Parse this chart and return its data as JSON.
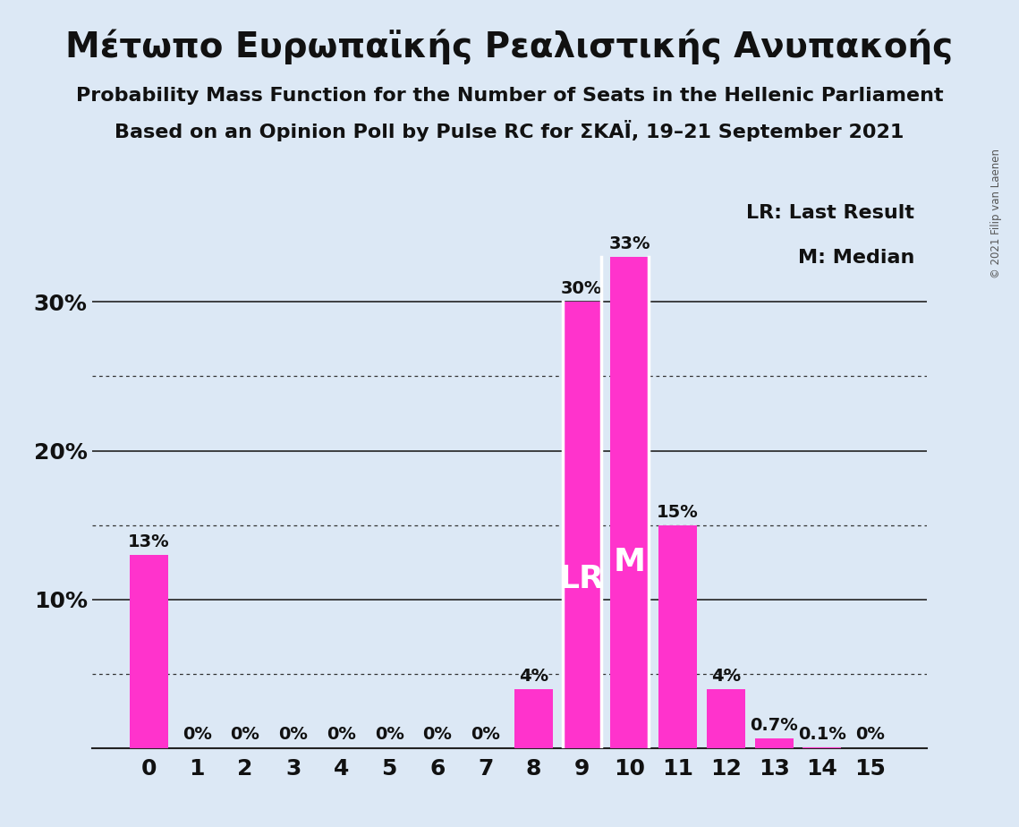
{
  "title_greek": "Μέτωπο Ευρωπαϊκής Ρεαλιστικής Ανυπακοής",
  "subtitle1": "Probability Mass Function for the Number of Seats in the Hellenic Parliament",
  "subtitle2": "Based on an Opinion Poll by Pulse RC for ΣΚΑΪ, 19–21 September 2021",
  "copyright": "© 2021 Filip van Laenen",
  "categories": [
    0,
    1,
    2,
    3,
    4,
    5,
    6,
    7,
    8,
    9,
    10,
    11,
    12,
    13,
    14,
    15
  ],
  "values": [
    0.13,
    0.0,
    0.0,
    0.0,
    0.0,
    0.0,
    0.0,
    0.0,
    0.04,
    0.3,
    0.33,
    0.15,
    0.04,
    0.007,
    0.001,
    0.0
  ],
  "bar_color": "#ff33cc",
  "background_color": "#dce8f5",
  "bar_labels": [
    "13%",
    "0%",
    "0%",
    "0%",
    "0%",
    "0%",
    "0%",
    "0%",
    "4%",
    "30%",
    "33%",
    "15%",
    "4%",
    "0.7%",
    "0.1%",
    "0%"
  ],
  "lr_seat": 9,
  "median_seat": 10,
  "lr_label": "LR",
  "median_label": "M",
  "legend_lr": "LR: Last Result",
  "legend_m": "M: Median",
  "ylim": [
    0,
    0.375
  ],
  "yticks": [
    0.0,
    0.1,
    0.2,
    0.3
  ],
  "ytick_labels": [
    "",
    "10%",
    "20%",
    "30%"
  ],
  "solid_gridlines": [
    0.1,
    0.2,
    0.3
  ],
  "dotted_gridlines": [
    0.05,
    0.15,
    0.25
  ],
  "title_fontsize": 28,
  "subtitle_fontsize": 16,
  "label_fontsize": 14,
  "tick_fontsize": 18,
  "legend_fontsize": 16,
  "lr_m_fontsize": 26
}
